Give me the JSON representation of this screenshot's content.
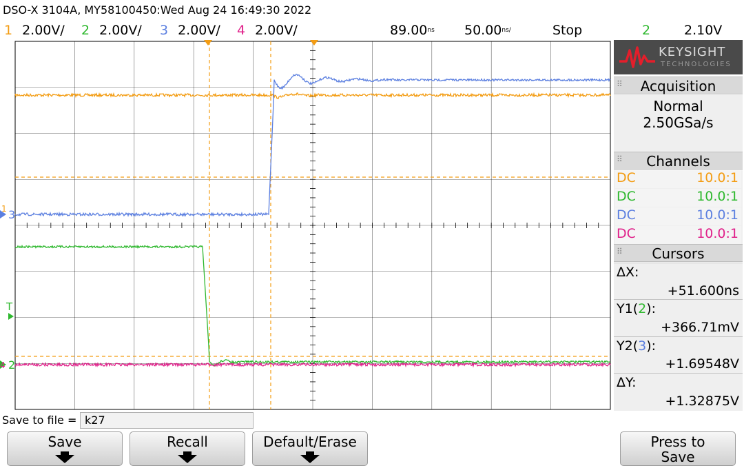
{
  "header": {
    "instrument": "DSO-X 3104A, MY58100450:Wed Aug 24 16:49:30 2022",
    "channels": [
      {
        "num": "1",
        "scale": "2.00V/",
        "color": "#f39c12"
      },
      {
        "num": "2",
        "scale": "2.00V/",
        "color": "#2eb82e"
      },
      {
        "num": "3",
        "scale": "2.00V/",
        "color": "#5b7fe0"
      },
      {
        "num": "4",
        "scale": "2.00V/",
        "color": "#e0208a"
      }
    ],
    "delay_value": "89.00",
    "delay_unit": "ns",
    "timebase_value": "50.00",
    "timebase_unit": "ns/",
    "run_state": "Stop",
    "trigger_channel": "2",
    "trigger_level": "2.10V"
  },
  "logo": {
    "name": "KEYSIGHT",
    "sub": "TECHNOLOGIES"
  },
  "acquisition": {
    "title": "Acquisition",
    "mode": "Normal",
    "rate": "2.50GSa/s"
  },
  "channels_panel": {
    "title": "Channels",
    "rows": [
      {
        "coupling": "DC",
        "probe": "10.0:1",
        "color": "#f39c12"
      },
      {
        "coupling": "DC",
        "probe": "10.0:1",
        "color": "#2eb82e"
      },
      {
        "coupling": "DC",
        "probe": "10.0:1",
        "color": "#5b7fe0"
      },
      {
        "coupling": "DC",
        "probe": "10.0:1",
        "color": "#e0208a"
      }
    ]
  },
  "cursors": {
    "title": "Cursors",
    "dx_label": "ΔX:",
    "dx_value": "+51.600ns",
    "y1_label_pre": "Y1(",
    "y1_source": "2",
    "y1_label_post": "):",
    "y1_value": "+366.71mV",
    "y2_label_pre": "Y2(",
    "y2_source": "3",
    "y2_label_post": "):",
    "y2_value": "+1.69548V",
    "dy_label": "ΔY:",
    "dy_value": "+1.32875V"
  },
  "markers": {
    "ch1": "1",
    "ch2": "2",
    "ch3": "3",
    "ch4": "4",
    "trig": "T"
  },
  "savefile": {
    "label": "Save to file =",
    "value": "k27"
  },
  "softkeys": {
    "save": "Save",
    "recall": "Recall",
    "default_erase": "Default/Erase",
    "press_to": "Press to",
    "press_save": "Save"
  },
  "colors": {
    "ch1": "#f39c12",
    "ch2": "#2eb82e",
    "ch3": "#5b7fe0",
    "ch4": "#e0208a",
    "grid": "#000000",
    "cursor": "#f39c12"
  }
}
